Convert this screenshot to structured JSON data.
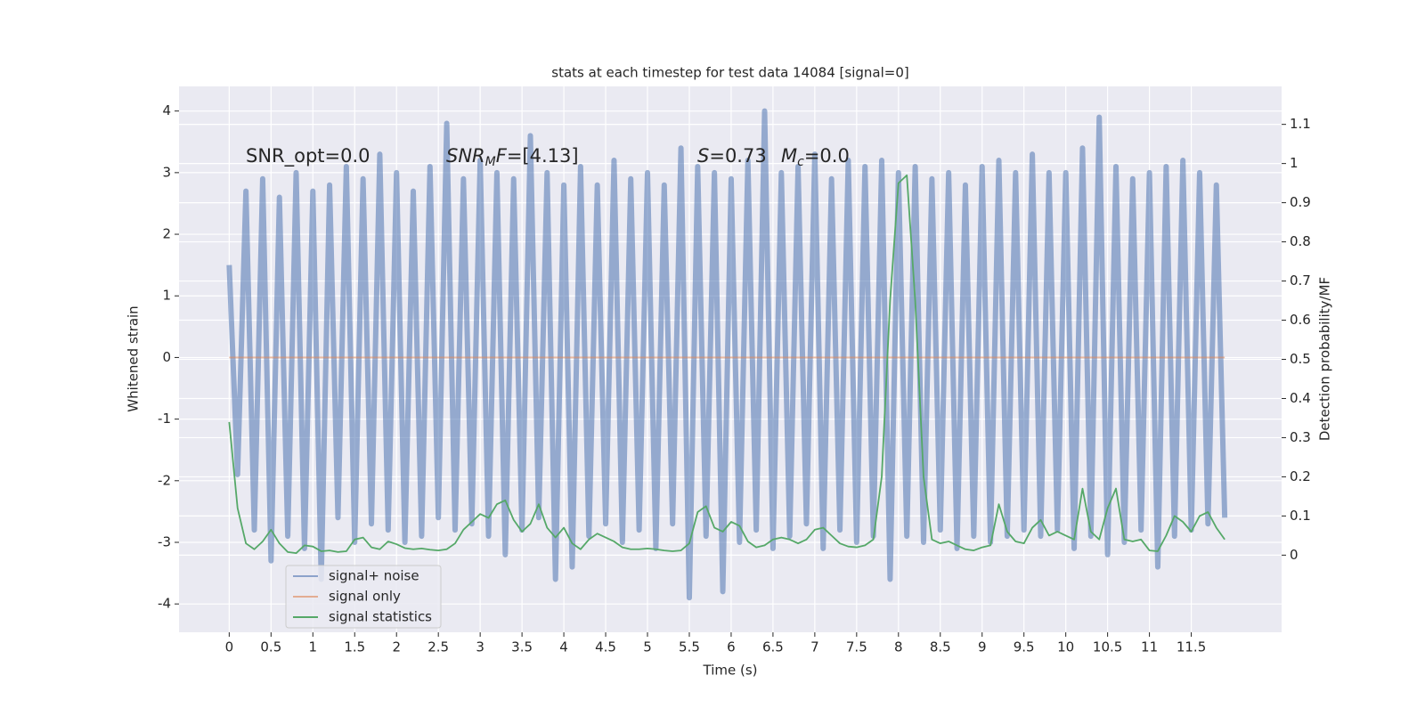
{
  "chart_data": {
    "type": "line",
    "title": "stats at each timestep for test data 14084 [signal=0]",
    "xlabel": "Time (s)",
    "ylabel": "Whitened strain",
    "y2label": "Detection probability/MF",
    "annotations": [
      [
        "SNR_opt=0.0"
      ],
      [
        "SNR",
        "M",
        "F",
        "=[4.13]"
      ],
      [
        "S",
        "=0.73"
      ],
      [
        "M",
        "c",
        "=0.0"
      ]
    ],
    "x": [
      0.0,
      0.1,
      0.2,
      0.3,
      0.4,
      0.5,
      0.6,
      0.7,
      0.8,
      0.9,
      1.0,
      1.1,
      1.2,
      1.3,
      1.4,
      1.5,
      1.6,
      1.7,
      1.8,
      1.9,
      2.0,
      2.1,
      2.2,
      2.3,
      2.4,
      2.5,
      2.6,
      2.7,
      2.8,
      2.9,
      3.0,
      3.1,
      3.2,
      3.3,
      3.4,
      3.5,
      3.6,
      3.7,
      3.8,
      3.9,
      4.0,
      4.1,
      4.2,
      4.3,
      4.4,
      4.5,
      4.6,
      4.7,
      4.8,
      4.9,
      5.0,
      5.1,
      5.2,
      5.3,
      5.4,
      5.5,
      5.6,
      5.7,
      5.8,
      5.9,
      6.0,
      6.1,
      6.2,
      6.3,
      6.4,
      6.5,
      6.6,
      6.7,
      6.8,
      6.9,
      7.0,
      7.1,
      7.2,
      7.3,
      7.4,
      7.5,
      7.6,
      7.7,
      7.8,
      7.9,
      8.0,
      8.1,
      8.2,
      8.3,
      8.4,
      8.5,
      8.6,
      8.7,
      8.8,
      8.9,
      9.0,
      9.1,
      9.2,
      9.3,
      9.4,
      9.5,
      9.6,
      9.7,
      9.8,
      9.9,
      10.0,
      10.1,
      10.2,
      10.3,
      10.4,
      10.5,
      10.6,
      10.7,
      10.8,
      10.9,
      11.0,
      11.1,
      11.2,
      11.3,
      11.4,
      11.5,
      11.6,
      11.7,
      11.8,
      11.9
    ],
    "series": [
      {
        "name": "signal+ noise",
        "color": "#4c72b0",
        "values": [
          1.5,
          -1.9,
          2.7,
          -2.8,
          2.9,
          -3.3,
          2.6,
          -2.9,
          3.0,
          -3.1,
          2.7,
          -3.6,
          2.8,
          -2.6,
          3.1,
          -3.0,
          2.9,
          -2.7,
          3.3,
          -2.8,
          3.0,
          -3.0,
          2.7,
          -2.9,
          3.1,
          -2.6,
          3.8,
          -2.8,
          2.9,
          -2.7,
          3.2,
          -2.9,
          3.0,
          -3.2,
          2.9,
          -2.8,
          3.6,
          -2.6,
          3.0,
          -3.6,
          2.8,
          -3.4,
          3.1,
          -2.9,
          2.8,
          -2.7,
          3.2,
          -3.0,
          2.9,
          -2.8,
          3.0,
          -3.1,
          2.8,
          -2.7,
          3.4,
          -3.9,
          3.1,
          -2.9,
          3.0,
          -3.8,
          2.9,
          -3.0,
          3.2,
          -2.8,
          4.0,
          -3.1,
          3.0,
          -2.9,
          3.1,
          -2.7,
          3.3,
          -3.1,
          2.9,
          -2.8,
          3.2,
          -3.0,
          3.1,
          -2.9,
          3.2,
          -3.6,
          3.0,
          -2.9,
          3.1,
          -3.0,
          2.9,
          -2.8,
          3.0,
          -3.1,
          2.8,
          -2.9,
          3.1,
          -3.0,
          3.2,
          -2.9,
          3.0,
          -2.8,
          3.3,
          -2.9,
          3.0,
          -2.8,
          3.0,
          -3.1,
          3.4,
          -2.9,
          3.9,
          -3.2,
          3.1,
          -3.0,
          2.9,
          -2.8,
          3.0,
          -3.4,
          3.1,
          -2.9,
          3.2,
          -2.8,
          3.0,
          -2.7,
          2.8,
          -2.6
        ]
      },
      {
        "name": "signal only",
        "color": "#dd8452",
        "values": [
          0,
          0,
          0,
          0,
          0,
          0,
          0,
          0,
          0,
          0,
          0,
          0,
          0,
          0,
          0,
          0,
          0,
          0,
          0,
          0,
          0,
          0,
          0,
          0,
          0,
          0,
          0,
          0,
          0,
          0,
          0,
          0,
          0,
          0,
          0,
          0,
          0,
          0,
          0,
          0,
          0,
          0,
          0,
          0,
          0,
          0,
          0,
          0,
          0,
          0,
          0,
          0,
          0,
          0,
          0,
          0,
          0,
          0,
          0,
          0,
          0,
          0,
          0,
          0,
          0,
          0,
          0,
          0,
          0,
          0,
          0,
          0,
          0,
          0,
          0,
          0,
          0,
          0,
          0,
          0,
          0,
          0,
          0,
          0,
          0,
          0,
          0,
          0,
          0,
          0,
          0,
          0,
          0,
          0,
          0,
          0,
          0,
          0,
          0,
          0,
          0,
          0,
          0,
          0,
          0,
          0,
          0,
          0,
          0,
          0,
          0,
          0,
          0,
          0,
          0,
          0,
          0,
          0,
          0,
          0
        ]
      },
      {
        "name": "signal statistics",
        "color": "#55a868",
        "axis": "y2",
        "values": [
          0.34,
          0.12,
          0.03,
          0.015,
          0.035,
          0.065,
          0.03,
          0.008,
          0.005,
          0.025,
          0.022,
          0.01,
          0.012,
          0.008,
          0.01,
          0.04,
          0.045,
          0.02,
          0.015,
          0.035,
          0.028,
          0.018,
          0.015,
          0.017,
          0.014,
          0.012,
          0.015,
          0.03,
          0.065,
          0.085,
          0.105,
          0.095,
          0.13,
          0.14,
          0.09,
          0.06,
          0.08,
          0.13,
          0.07,
          0.045,
          0.07,
          0.03,
          0.015,
          0.04,
          0.055,
          0.045,
          0.035,
          0.02,
          0.015,
          0.015,
          0.017,
          0.015,
          0.012,
          0.01,
          0.012,
          0.03,
          0.11,
          0.125,
          0.07,
          0.06,
          0.085,
          0.075,
          0.035,
          0.02,
          0.025,
          0.04,
          0.045,
          0.04,
          0.03,
          0.04,
          0.065,
          0.07,
          0.05,
          0.03,
          0.022,
          0.02,
          0.025,
          0.04,
          0.2,
          0.65,
          0.95,
          0.97,
          0.65,
          0.2,
          0.04,
          0.03,
          0.035,
          0.025,
          0.015,
          0.012,
          0.02,
          0.025,
          0.13,
          0.06,
          0.035,
          0.03,
          0.07,
          0.09,
          0.05,
          0.06,
          0.05,
          0.04,
          0.17,
          0.06,
          0.04,
          0.12,
          0.17,
          0.04,
          0.035,
          0.04,
          0.012,
          0.01,
          0.05,
          0.1,
          0.085,
          0.06,
          0.1,
          0.11,
          0.07,
          0.04
        ]
      }
    ],
    "xlim": [
      -0.6,
      12.58
    ],
    "ylim": [
      -4.46,
      4.4
    ],
    "y2lim": [
      -0.197,
      1.197
    ],
    "xticks": [
      0.0,
      0.5,
      1.0,
      1.5,
      2.0,
      2.5,
      3.0,
      3.5,
      4.0,
      4.5,
      5.0,
      5.5,
      6.0,
      6.5,
      7.0,
      7.5,
      8.0,
      8.5,
      9.0,
      9.5,
      10.0,
      10.5,
      11.0,
      11.5
    ],
    "yticks": [
      -4,
      -3,
      -2,
      -1,
      0,
      1,
      2,
      3,
      4
    ],
    "y2ticks": [
      0.0,
      0.1,
      0.2,
      0.3,
      0.4,
      0.5,
      0.6,
      0.7,
      0.8,
      0.9,
      1.0,
      1.1
    ],
    "grid": true,
    "legend": "lower left"
  }
}
